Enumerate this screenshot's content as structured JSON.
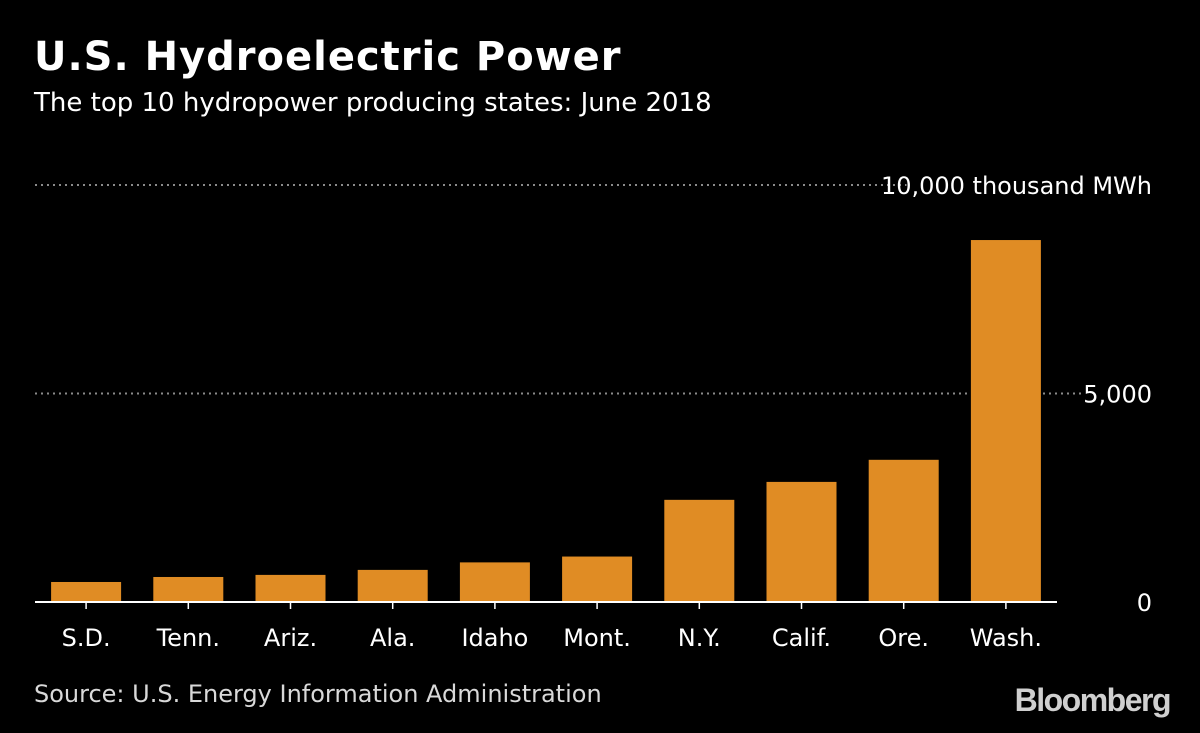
{
  "header": {
    "title": "U.S. Hydroelectric Power",
    "subtitle": "The top 10 hydropower producing states: June 2018"
  },
  "footer": {
    "source": "Source: U.S. Energy Information Administration",
    "logo": "Bloomberg"
  },
  "colors": {
    "background": "#000000",
    "bar": "#e08c24",
    "text": "#ffffff",
    "gridline": "#8a8a8a"
  },
  "chart_data": {
    "type": "bar",
    "categories": [
      "S.D.",
      "Tenn.",
      "Ariz.",
      "Ala.",
      "Idaho",
      "Mont.",
      "N.Y.",
      "Calif.",
      "Ore.",
      "Wash."
    ],
    "values": [
      480,
      600,
      650,
      770,
      950,
      1090,
      2450,
      2880,
      3410,
      8680
    ],
    "unit": "thousand MWh",
    "ylim": [
      0,
      10000
    ],
    "yticks": [
      0,
      5000,
      10000
    ],
    "ytick_labels": [
      "0",
      "5,000",
      "10,000 thousand MWh"
    ],
    "grid": true,
    "legend": "none"
  }
}
